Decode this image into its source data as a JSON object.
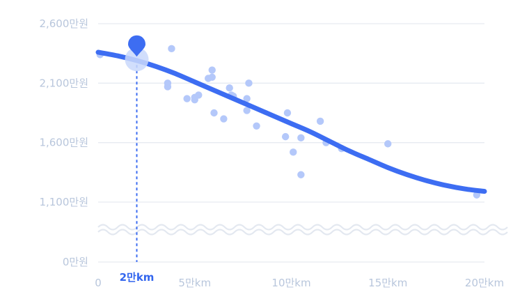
{
  "chart_data": {
    "type": "scatter",
    "title": "",
    "xlabel": "",
    "ylabel": "",
    "x_unit": "만km",
    "y_unit": "만원",
    "xlim": [
      0,
      20
    ],
    "ylim": [
      0,
      2600
    ],
    "axis_break": [
      0,
      1100
    ],
    "x_ticks": [
      {
        "value": 0,
        "label": "0"
      },
      {
        "value": 5,
        "label": "5만km"
      },
      {
        "value": 10,
        "label": "10만km"
      },
      {
        "value": 15,
        "label": "15만km"
      },
      {
        "value": 20,
        "label": "20만km"
      }
    ],
    "y_ticks": [
      {
        "value": 0,
        "label": "0만원"
      },
      {
        "value": 1100,
        "label": "1,100만원"
      },
      {
        "value": 1600,
        "label": "1,600만원"
      },
      {
        "value": 2100,
        "label": "2,100만원"
      },
      {
        "value": 2600,
        "label": "2,600만원"
      }
    ],
    "grid": true,
    "points": [
      {
        "x": 0.1,
        "y": 2340
      },
      {
        "x": 3.8,
        "y": 2390
      },
      {
        "x": 3.6,
        "y": 2100
      },
      {
        "x": 3.6,
        "y": 2070
      },
      {
        "x": 4.6,
        "y": 1970
      },
      {
        "x": 5.0,
        "y": 1980
      },
      {
        "x": 5.0,
        "y": 1960
      },
      {
        "x": 5.2,
        "y": 2000
      },
      {
        "x": 5.7,
        "y": 2140
      },
      {
        "x": 5.9,
        "y": 2150
      },
      {
        "x": 5.9,
        "y": 2210
      },
      {
        "x": 6.0,
        "y": 1850
      },
      {
        "x": 6.5,
        "y": 1800
      },
      {
        "x": 6.8,
        "y": 2060
      },
      {
        "x": 6.9,
        "y": 2000
      },
      {
        "x": 7.0,
        "y": 1990
      },
      {
        "x": 7.8,
        "y": 2100
      },
      {
        "x": 7.7,
        "y": 1970
      },
      {
        "x": 7.7,
        "y": 1870
      },
      {
        "x": 8.2,
        "y": 1740
      },
      {
        "x": 9.7,
        "y": 1650
      },
      {
        "x": 9.8,
        "y": 1850
      },
      {
        "x": 10.1,
        "y": 1520
      },
      {
        "x": 10.5,
        "y": 1640
      },
      {
        "x": 10.5,
        "y": 1330
      },
      {
        "x": 11.5,
        "y": 1780
      },
      {
        "x": 11.8,
        "y": 1600
      },
      {
        "x": 12.6,
        "y": 1550
      },
      {
        "x": 15.0,
        "y": 1590
      },
      {
        "x": 19.6,
        "y": 1160
      }
    ],
    "trend": {
      "x": [
        0,
        1,
        2,
        3,
        4,
        5,
        6,
        7,
        8,
        9,
        10,
        11,
        12,
        13,
        14,
        15,
        16,
        17,
        18,
        19,
        20
      ],
      "y": [
        2360,
        2330,
        2290,
        2240,
        2180,
        2110,
        2040,
        1970,
        1900,
        1830,
        1760,
        1690,
        1610,
        1530,
        1460,
        1390,
        1330,
        1280,
        1240,
        1210,
        1190
      ]
    },
    "highlight": {
      "x": 2,
      "y": 2300,
      "label": "2만km"
    },
    "colors": {
      "point": "#b4c8fa",
      "trend": "#3d6df2",
      "marker": "#3d6df2",
      "marker_halo": "#c9d8fb",
      "grid": "#e6eaf1",
      "tick": "#b8c6dc",
      "highlight_text": "#3366ee",
      "break": "#e3e8f0"
    }
  }
}
